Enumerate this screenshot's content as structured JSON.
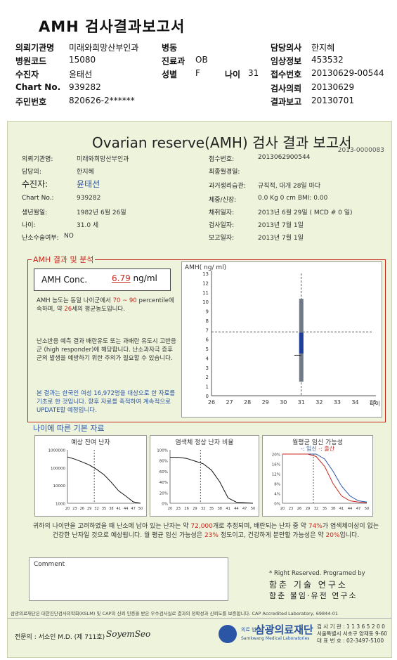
{
  "header": {
    "title": "AMH 검사결과보고서",
    "rows": [
      [
        {
          "k": "의뢰기관명",
          "v": "미래와희망산부인과"
        },
        {
          "k": "병동",
          "v": ""
        },
        {
          "k": "담당의사",
          "v": "한지혜"
        }
      ],
      [
        {
          "k": "병원코드",
          "v": "15080"
        },
        {
          "k": "진료과",
          "v": "OB"
        },
        {
          "k": "임상정보",
          "v": "453532"
        }
      ],
      [
        {
          "k": "수진자",
          "v": "윤태선"
        },
        {
          "k": "성별",
          "v": "F"
        },
        {
          "k": "나이",
          "v": "31"
        },
        {
          "k": "접수번호",
          "v": "20130629-00544"
        }
      ],
      [
        {
          "k": "Chart No.",
          "v": "939282"
        },
        {
          "k": "검사의뢰",
          "v": "20130629"
        }
      ],
      [
        {
          "k": "주민번호",
          "v": "820626-2******"
        },
        {
          "k": "결과보고",
          "v": "20130701"
        }
      ]
    ]
  },
  "report": {
    "title": "Ovarian reserve(AMH) 검사 결과 보고서",
    "code": "2013-0000083",
    "left_info": [
      {
        "k": "의뢰기관명:",
        "v": "미래와희망산부인과"
      },
      {
        "k": "담당의:",
        "v": "한지혜"
      },
      {
        "k": "수진자:",
        "v": "윤태선"
      },
      {
        "k": "Chart No.:",
        "v": "939282"
      },
      {
        "k": "생년월일:",
        "v": "1982년 6월 26일"
      },
      {
        "k": "나이:",
        "v": "31.0 세"
      },
      {
        "k": "난소수술여부:",
        "v": "NO"
      }
    ],
    "right_info": [
      {
        "k": "접수번호:",
        "v": "2013062900544"
      },
      {
        "k": "최종월경일:",
        "v": ""
      },
      {
        "k": "과거생리습관:",
        "v": "규칙적, 대개  28일 마다"
      },
      {
        "k": "체중/신장:",
        "v": "0.0 Kg      0 cm    BMI:     0.00"
      },
      {
        "k": "채취일자:",
        "v": "2013년 6월 29일  ( MCD #  0 일)"
      },
      {
        "k": "검사일자:",
        "v": "2013년 7월 1일"
      },
      {
        "k": "보고일자:",
        "v": "2013년 7월 1일"
      }
    ],
    "amh_section_label": "AMH 결과 및 분석",
    "conc_label": "AMH Conc.",
    "conc_value": "6.79",
    "conc_unit": "ng/ml",
    "p1_a": "AMH 농도는 동일 나이군에서",
    "p1_range": "70 ~  90",
    "p1_b": "percentile에 속하며, 약",
    "p1_age": "26",
    "p1_c": "세의 평균농도입니다.",
    "p2": "난소반응 예측 결과 배란유도 또는 과배란 유도시 고반응군 (high responder)에 해당합니다. 난소과자극 증후군의 발생을 예방하기 위한 주의가 필요할 수 있습니다.",
    "p3": "본 결과는 한국인 여성 16,972명을 대상으로 한 자료를 기초로 한 것입니다. 향후 자료를 축적하여 계속적으로 UPDATE할 예정입니다.",
    "age_section_label": "나이에 따른 기본 자료",
    "mini1_title": "예상 잔여 난자",
    "mini2_title": "염색체 정상 난자 비율",
    "mini3_title": "월평균 임신 가능성",
    "mini3_legend_a": "-: 임신",
    "mini3_legend_b": "-: 출산",
    "summary_a": "귀하의 나이만을 고려하였을 때 난소에 남아 있는 난자는 약",
    "summary_n1": "72,000",
    "summary_b": "개로 추정되며, 배란되는 난자 중 약",
    "summary_n2": "74%",
    "summary_c": "가 염색체이상이 없는 건강한 난자일 것으로 예상됩니다. 월 평균 임신 가능성은",
    "summary_n3": "23%",
    "summary_d": "정도이고, 건강하게 분만할 가능성은 약",
    "summary_n4": "20%",
    "summary_e": "입니다.",
    "comment_label": "Comment",
    "rights": "* Right Reserved. Programed by",
    "inst1": "함춘 기술 연구소",
    "inst2": "함춘 불임·유전 연구소",
    "footer_note": "삼광의료재단은 대한진단검사의학회(KSLM) 및 CAP의 신뢰 인증을 받은 우수검사실로 결과의 정확성과 신뢰도를 보증합니다.     CAP Accredited Laboratory, 69844-01",
    "doctor": "전문의 : 서소인 M.D. (제 711호)",
    "signature": "SoyemSeo",
    "lab_small": "의료 법인",
    "lab_name": "삼광의료재단",
    "lab_en": "Samkwang Medical Laboratories",
    "lab_info": [
      "검 사 기 관 : 1 1 3 6 5 2 0 0",
      "서울특별시 서초구 양재동 9-60",
      "대 표 번 호 : 02-3497-5100"
    ]
  },
  "chart_data": [
    {
      "type": "scatter",
      "ylabel": "AMH( ng/ ml)",
      "xlabel": "나이",
      "x": [
        26,
        27,
        28,
        29,
        30,
        31,
        32,
        33,
        34,
        35
      ],
      "xlim": [
        26,
        35
      ],
      "ylim": [
        0,
        13
      ],
      "yticks": [
        0,
        1,
        2,
        3,
        4,
        5,
        6,
        7,
        8,
        9,
        10,
        11,
        12,
        13
      ],
      "point": {
        "x": 31,
        "y": 6.79
      },
      "range_bar": {
        "x": 31,
        "low": 1.5,
        "high": 10.3
      },
      "box": {
        "x": 31,
        "low": 4.5,
        "high": 6.7
      },
      "mean_tick": 4.3
    },
    {
      "type": "line",
      "title": "예상 잔여 난자",
      "y_log": true,
      "ylim": [
        1000,
        1000000
      ],
      "yticks": [
        "1000000",
        "100000",
        "10000",
        "1000"
      ],
      "x": [
        20,
        23,
        26,
        29,
        32,
        35,
        38,
        41,
        44,
        47,
        50
      ],
      "y": [
        400000,
        300000,
        210000,
        140000,
        80000,
        40000,
        15000,
        5000,
        2500,
        1200,
        1000
      ],
      "marker_x": 31
    },
    {
      "type": "line",
      "title": "염색체 정상 난자 비율",
      "ylim": [
        0,
        100
      ],
      "yticks": [
        "100%",
        "80%",
        "60%",
        "40%",
        "20%",
        "0%"
      ],
      "x": [
        20,
        23,
        26,
        29,
        32,
        35,
        38,
        41,
        44,
        47,
        50
      ],
      "y": [
        86,
        86,
        84,
        79,
        74,
        62,
        40,
        10,
        2,
        1,
        0
      ],
      "marker_x": 31
    },
    {
      "type": "line",
      "title": "월평균 임신 가능성",
      "ylim": [
        0,
        20
      ],
      "yticks": [
        "20%",
        "16%",
        "12%",
        "8%",
        "4%",
        "0%"
      ],
      "x": [
        20,
        23,
        26,
        29,
        32,
        35,
        38,
        41,
        44,
        47,
        50
      ],
      "series": [
        {
          "name": "임신",
          "values": [
            20,
            20,
            20,
            20,
            20,
            18,
            13,
            7,
            3,
            1,
            0.5
          ]
        },
        {
          "name": "출산",
          "values": [
            20,
            20,
            20,
            20,
            19,
            15,
            8,
            3,
            1,
            0.5,
            0.2
          ]
        }
      ],
      "marker_x": 31
    }
  ],
  "colors": {
    "accent_red": "#c8281e",
    "blue": "#2b55a5",
    "report_bg": "#eef3dc"
  }
}
